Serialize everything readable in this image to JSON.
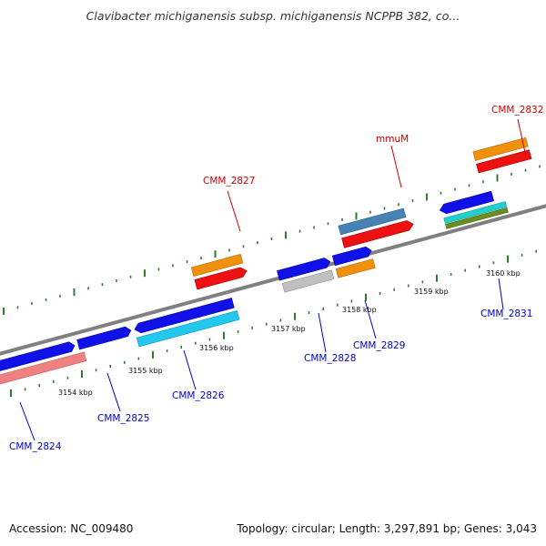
{
  "title": "Clavibacter michiganensis subsp. michiganensis NCPPB 382, co...",
  "footer": {
    "accession": "Accession: NC_009480",
    "topology": "Topology: circular; Length: 3,297,891 bp; Genes: 3,043"
  },
  "ticks": [
    "3154 kbp",
    "3155 kbp",
    "3156 kbp",
    "3157 kbp",
    "3158 kbp",
    "3159 kbp",
    "3160 kbp"
  ],
  "genes": [
    {
      "name": "CMM_2824",
      "color": "#0000cc"
    },
    {
      "name": "CMM_2825",
      "color": "#0000cc"
    },
    {
      "name": "CMM_2826",
      "color": "#0000cc"
    },
    {
      "name": "CMM_2827",
      "color": "#cc0000"
    },
    {
      "name": "CMM_2828",
      "color": "#0000cc"
    },
    {
      "name": "CMM_2829",
      "color": "#0000cc"
    },
    {
      "name": "mmuM",
      "color": "#cc0000"
    },
    {
      "name": "CMM_2831",
      "color": "#0000cc"
    },
    {
      "name": "CMM_2832",
      "color": "#cc0000"
    }
  ],
  "colors": {
    "backbone": "#808080",
    "ticks": "#2e7d32",
    "blue": "#1010e8",
    "cyan": "#22c8ee",
    "orange": "#f0900c",
    "red": "#ee1111",
    "pink": "#f08080",
    "steel": "#4682b4",
    "gray": "#c0c0c0",
    "olive": "#6b8e23",
    "teal": "#20d0d0"
  }
}
